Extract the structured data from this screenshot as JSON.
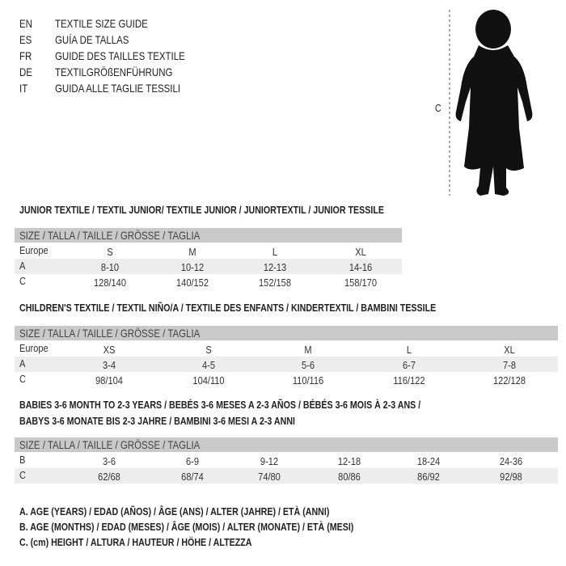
{
  "languages": [
    {
      "code": "EN",
      "title": "TEXTILE SIZE GUIDE"
    },
    {
      "code": "ES",
      "title": "GUÍA DE TALLAS"
    },
    {
      "code": "FR",
      "title": "GUIDE DES TAILLES TEXTILE"
    },
    {
      "code": "DE",
      "title": "TEXTILGRÖßENFÜHRUNG"
    },
    {
      "code": "IT",
      "title": "GUIDA ALLE TAGLIE TESSILI"
    }
  ],
  "figure": {
    "height_label": "C",
    "icon": "baby-silhouette"
  },
  "size_header": "SIZE / TALLA / TAILLE / GRÖSSE / TAGLIA",
  "junior": {
    "title": "JUNIOR TEXTILE / TEXTIL JUNIOR/ TEXTILE JUNIOR / JUNIORTEXTIL / JUNIOR TESSILE",
    "rows": [
      {
        "label": "Europe",
        "values": [
          "S",
          "M",
          "L",
          "XL"
        ]
      },
      {
        "label": "A",
        "values": [
          "8-10",
          "10-12",
          "12-13",
          "14-16"
        ]
      },
      {
        "label": "C",
        "values": [
          "128/140",
          "140/152",
          "152/158",
          "158/170"
        ]
      }
    ]
  },
  "children": {
    "title": "CHILDREN'S TEXTILE / TEXTIL NIÑO/A / TEXTILE DES ENFANTS / KINDERTEXTIL / BAMBINI TESSILE",
    "rows": [
      {
        "label": "Europe",
        "values": [
          "XS",
          "S",
          "M",
          "L",
          "XL"
        ]
      },
      {
        "label": "A",
        "values": [
          "3-4",
          "4-5",
          "5-6",
          "6-7",
          "7-8"
        ]
      },
      {
        "label": "C",
        "values": [
          "98/104",
          "104/110",
          "110/116",
          "116/122",
          "122/128"
        ]
      }
    ]
  },
  "babies": {
    "title_line1": "BABIES 3-6 MONTH TO 2-3 YEARS / BEBÉS 3-6 MESES A 2-3 AÑOS / BÉBÉS 3-6 MOIS À 2-3 ANS /",
    "title_line2": "BABYS 3-6 MONATE BIS 2-3 JAHRE / BAMBINI 3-6 MESI A 2-3 ANNI",
    "rows": [
      {
        "label": "B",
        "values": [
          "3-6",
          "6-9",
          "9-12",
          "12-18",
          "18-24",
          "24-36"
        ]
      },
      {
        "label": "C",
        "values": [
          "62/68",
          "68/74",
          "74/80",
          "80/86",
          "86/92",
          "92/98"
        ]
      }
    ]
  },
  "legend": [
    "A. AGE (YEARS) / EDAD (AÑOS) / ÂGE (ANS) / ALTER (JAHRE) / ETÀ (ANNI)",
    "B. AGE (MONTHS) / EDAD (MESES) / ÂGE (MOIS) / ALTER (MONATE) / ETÀ (MESI)",
    "C. (cm) HEIGHT / ALTURA / HAUTEUR / HÖHE / ALTEZZA"
  ]
}
